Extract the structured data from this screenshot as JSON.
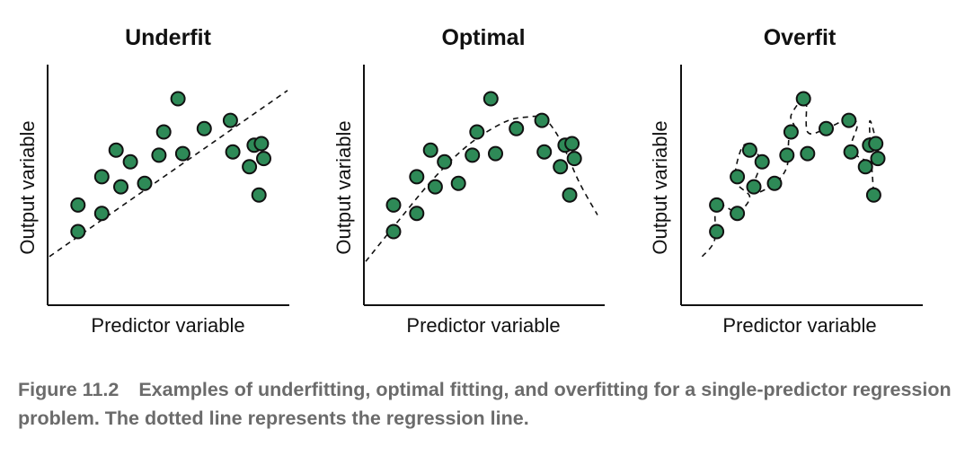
{
  "colors": {
    "point_fill": "#2e8a57",
    "point_stroke": "#111111",
    "axis": "#111111",
    "caption": "#6b6b6b"
  },
  "chart_data": [
    {
      "type": "scatter",
      "title": "Underfit",
      "xlabel": "Predictor variable",
      "ylabel": "Output variable",
      "xlim": [
        0,
        10
      ],
      "ylim": [
        0,
        10
      ],
      "points": [
        [
          1.2,
          3.6
        ],
        [
          1.2,
          2.0
        ],
        [
          2.2,
          3.1
        ],
        [
          2.2,
          5.3
        ],
        [
          2.8,
          6.9
        ],
        [
          3.0,
          4.7
        ],
        [
          3.4,
          6.2
        ],
        [
          4.0,
          4.9
        ],
        [
          4.6,
          6.6
        ],
        [
          4.8,
          8.0
        ],
        [
          5.4,
          10.0
        ],
        [
          5.6,
          6.7
        ],
        [
          6.5,
          8.2
        ],
        [
          7.6,
          8.7
        ],
        [
          7.7,
          6.8
        ],
        [
          8.4,
          5.9
        ],
        [
          8.6,
          7.2
        ],
        [
          8.8,
          4.2
        ],
        [
          8.9,
          7.3
        ],
        [
          9.0,
          6.4
        ]
      ],
      "fit_line": {
        "style": "dashed",
        "x": [
          0,
          10
        ],
        "y": [
          0.5,
          10.5
        ]
      }
    },
    {
      "type": "scatter",
      "title": "Optimal",
      "xlabel": "Predictor variable",
      "ylabel": "Output variable",
      "xlim": [
        0,
        10
      ],
      "ylim": [
        0,
        10
      ],
      "points": [
        [
          1.2,
          3.6
        ],
        [
          1.2,
          2.0
        ],
        [
          2.2,
          3.1
        ],
        [
          2.2,
          5.3
        ],
        [
          2.8,
          6.9
        ],
        [
          3.0,
          4.7
        ],
        [
          3.4,
          6.2
        ],
        [
          4.0,
          4.9
        ],
        [
          4.6,
          6.6
        ],
        [
          4.8,
          8.0
        ],
        [
          5.4,
          10.0
        ],
        [
          5.6,
          6.7
        ],
        [
          6.5,
          8.2
        ],
        [
          7.6,
          8.7
        ],
        [
          7.7,
          6.8
        ],
        [
          8.4,
          5.9
        ],
        [
          8.6,
          7.2
        ],
        [
          8.8,
          4.2
        ],
        [
          8.9,
          7.3
        ],
        [
          9.0,
          6.4
        ]
      ],
      "fit_line": {
        "style": "dashed",
        "x": [
          0,
          1.5,
          3,
          4.5,
          6,
          7,
          7.7,
          8.4,
          9.2,
          10
        ],
        "y": [
          0.2,
          2.8,
          5.3,
          7.3,
          8.6,
          8.9,
          8.8,
          7.5,
          5.0,
          3.0
        ]
      }
    },
    {
      "type": "scatter",
      "title": "Overfit",
      "xlabel": "Predictor variable",
      "ylabel": "Output variable",
      "xlim": [
        0,
        10
      ],
      "ylim": [
        0,
        10
      ],
      "points": [
        [
          1.2,
          3.6
        ],
        [
          1.2,
          2.0
        ],
        [
          2.2,
          3.1
        ],
        [
          2.2,
          5.3
        ],
        [
          2.8,
          6.9
        ],
        [
          3.0,
          4.7
        ],
        [
          3.4,
          6.2
        ],
        [
          4.0,
          4.9
        ],
        [
          4.6,
          6.6
        ],
        [
          4.8,
          8.0
        ],
        [
          5.4,
          10.0
        ],
        [
          5.6,
          6.7
        ],
        [
          6.5,
          8.2
        ],
        [
          7.6,
          8.7
        ],
        [
          7.7,
          6.8
        ],
        [
          8.4,
          5.9
        ],
        [
          8.6,
          7.2
        ],
        [
          8.8,
          4.2
        ],
        [
          8.9,
          7.3
        ],
        [
          9.0,
          6.4
        ]
      ],
      "fit_line": {
        "style": "dashed",
        "x": [
          0.5,
          1.1,
          1.2,
          2.2,
          2.8,
          2.1,
          2.4,
          2.9,
          3.3,
          2.9,
          3.1,
          4.0,
          4.6,
          4.7,
          5.0,
          4.8,
          5.5,
          5.6,
          6.5,
          7.6,
          8.0,
          7.7,
          8.4,
          8.9,
          9.0,
          8.6,
          8.8
        ],
        "y": [
          0.5,
          1.5,
          3.6,
          3.2,
          4.1,
          5.1,
          7.0,
          7.2,
          6.1,
          4.6,
          4.3,
          4.9,
          5.9,
          7.6,
          8.2,
          9.0,
          10.0,
          8.0,
          8.2,
          8.8,
          8.4,
          7.0,
          6.3,
          6.5,
          6.9,
          8.6,
          4.2
        ]
      }
    }
  ],
  "caption": {
    "label": "Figure 11.2",
    "text": "Examples of underfitting, optimal fitting, and overfitting for a single-predictor regression problem. The dotted line represents the regression line."
  }
}
